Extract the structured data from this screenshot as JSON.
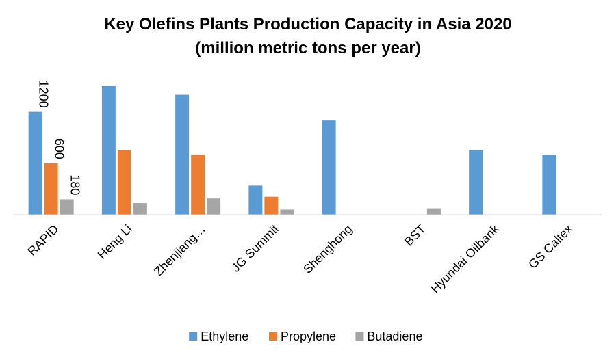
{
  "chart_data": {
    "type": "bar",
    "title": "Key Olefins Plants Production Capacity in Asia 2020",
    "subtitle": "(million metric tons per year)",
    "xlabel": "",
    "ylabel": "",
    "categories": [
      "RAPID",
      "Heng Li",
      "Zhenjiang…",
      "JG Summit",
      "Shenghong",
      "BST",
      "Hyundai Oilbank",
      "GS Caltex"
    ],
    "series": [
      {
        "name": "Ethylene",
        "color": "#5B9BD5",
        "values": [
          1200,
          1500,
          1400,
          340,
          1100,
          null,
          750,
          700
        ],
        "data_labels": [
          "1200",
          null,
          null,
          null,
          null,
          null,
          null,
          null
        ]
      },
      {
        "name": "Propylene",
        "color": "#ED7D31",
        "values": [
          600,
          750,
          700,
          210,
          null,
          null,
          null,
          null
        ],
        "data_labels": [
          "600",
          null,
          null,
          null,
          null,
          null,
          null,
          null
        ]
      },
      {
        "name": "Butadiene",
        "color": "#A5A5A5",
        "values": [
          180,
          135,
          190,
          60,
          null,
          75,
          null,
          null
        ],
        "data_labels": [
          "180",
          null,
          null,
          null,
          null,
          null,
          null,
          null
        ]
      }
    ],
    "ylim": [
      0,
      1500
    ],
    "y_axis_visible": false,
    "grid": false,
    "legend_position": "bottom",
    "tick_label_rotation": "-45"
  }
}
